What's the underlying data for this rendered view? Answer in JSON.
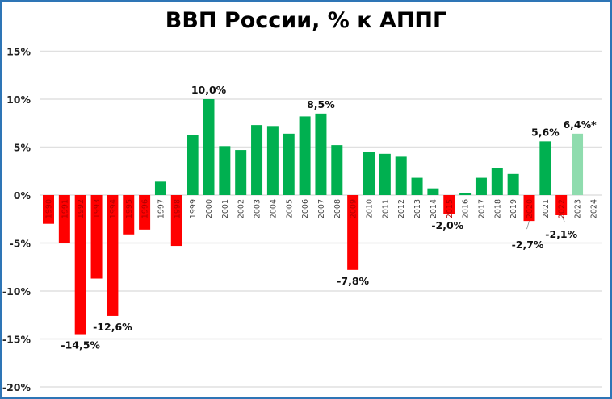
{
  "chart_data": {
    "type": "bar",
    "title": "ВВП России, % к АППГ",
    "xlabel": "",
    "ylabel": "",
    "ylim": [
      -20,
      15
    ],
    "yticks": [
      "15%",
      "10%",
      "5%",
      "0%",
      "-5%",
      "-10%",
      "-15%",
      "-20%"
    ],
    "ytick_values": [
      15,
      10,
      5,
      0,
      -5,
      -10,
      -15,
      -20
    ],
    "grid": true,
    "legend": null,
    "categories": [
      "1990",
      "1991",
      "1992",
      "1993",
      "1994",
      "1995",
      "1996",
      "1997",
      "1998",
      "1999",
      "2000",
      "2001",
      "2002",
      "2003",
      "2004",
      "2005",
      "2006",
      "2007",
      "2008",
      "2009",
      "2010",
      "2011",
      "2012",
      "2013",
      "2014",
      "2015",
      "2016",
      "2017",
      "2018",
      "2019",
      "2020",
      "2021",
      "2022",
      "2023",
      "2024"
    ],
    "values": [
      -3.0,
      -5.0,
      -14.5,
      -8.7,
      -12.6,
      -4.1,
      -3.6,
      1.4,
      -5.3,
      6.3,
      10.0,
      5.1,
      4.7,
      7.3,
      7.2,
      6.4,
      8.2,
      8.5,
      5.2,
      -7.8,
      4.5,
      4.3,
      4.0,
      1.8,
      0.7,
      -2.0,
      0.2,
      1.8,
      2.8,
      2.2,
      -2.7,
      5.6,
      -2.1,
      6.4,
      null
    ],
    "data_labels": [
      {
        "category": "1992",
        "text": "-14,5%"
      },
      {
        "category": "1994",
        "text": "-12,6%"
      },
      {
        "category": "2000",
        "text": "10,0%"
      },
      {
        "category": "2007",
        "text": "8,5%"
      },
      {
        "category": "2009",
        "text": "-7,8%"
      },
      {
        "category": "2015",
        "text": "-2,0%"
      },
      {
        "category": "2020",
        "text": "-2,7%"
      },
      {
        "category": "2021",
        "text": "5,6%"
      },
      {
        "category": "2022",
        "text": "-2,1%"
      },
      {
        "category": "2023",
        "text": "6,4%*"
      }
    ],
    "colors": {
      "positive": "#00b050",
      "negative": "#ff0000",
      "estimate": "#8fdcae",
      "grid": "#e0e0e0",
      "border": "#2e75b6"
    },
    "estimate_categories": [
      "2023"
    ]
  }
}
